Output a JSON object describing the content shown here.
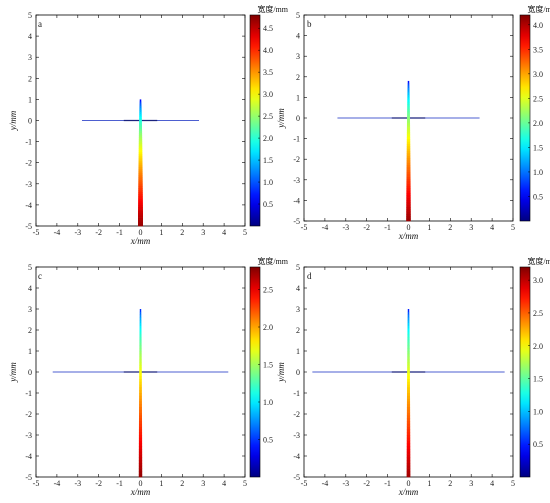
{
  "chart_data": [
    {
      "type": "heatmap",
      "panel": "a",
      "xlabel": "x/mm",
      "ylabel": "y/mm",
      "xlim": [
        -5,
        5
      ],
      "ylim": [
        -5,
        5
      ],
      "xticks": [
        -5,
        -4,
        -3,
        -2,
        -1,
        0,
        1,
        2,
        3,
        4,
        5
      ],
      "yticks": [
        -5,
        -4,
        -3,
        -2,
        -1,
        0,
        1,
        2,
        3,
        4,
        5
      ],
      "colorbar": {
        "title": "宽度/mm",
        "min": 0,
        "max": 4.8,
        "ticks": [
          "0.5",
          "1.0",
          "1.5",
          "2.0",
          "2.5",
          "3.0",
          "3.5",
          "4.0",
          "4.5"
        ]
      },
      "crack": {
        "horizontal": [
          -2.8,
          2.8
        ],
        "horizontal_y": 0,
        "vertical_top": 1.0,
        "vertical_bottom": -5.0,
        "width_top": 0.3,
        "width_bottom": 4.7
      }
    },
    {
      "type": "heatmap",
      "panel": "b",
      "xlabel": "x/mm",
      "ylabel": "y/mm",
      "xlim": [
        -5,
        5
      ],
      "ylim": [
        -5,
        5
      ],
      "xticks": [
        -5,
        -4,
        -3,
        -2,
        -1,
        0,
        1,
        2,
        3,
        4,
        5
      ],
      "yticks": [
        -5,
        -4,
        -3,
        -2,
        -1,
        0,
        1,
        2,
        3,
        4,
        5
      ],
      "colorbar": {
        "title": "宽度/mm",
        "min": 0,
        "max": 4.2,
        "ticks": [
          "0.5",
          "1.0",
          "1.5",
          "2.0",
          "2.5",
          "3.0",
          "3.5",
          "4.0"
        ]
      },
      "crack": {
        "horizontal": [
          -3.4,
          3.4
        ],
        "horizontal_y": 0,
        "vertical_top": 1.8,
        "vertical_bottom": -5.0,
        "width_top": 0.3,
        "width_bottom": 4.1
      }
    },
    {
      "type": "heatmap",
      "panel": "c",
      "xlabel": "x/mm",
      "ylabel": "y/mm",
      "xlim": [
        -5,
        5
      ],
      "ylim": [
        -5,
        5
      ],
      "xticks": [
        -5,
        -4,
        -3,
        -2,
        -1,
        0,
        1,
        2,
        3,
        4,
        5
      ],
      "yticks": [
        -5,
        -4,
        -3,
        -2,
        -1,
        0,
        1,
        2,
        3,
        4,
        5
      ],
      "colorbar": {
        "title": "宽度/mm",
        "min": 0,
        "max": 2.8,
        "ticks": [
          "0.5",
          "1.0",
          "1.5",
          "2.0",
          "2.5"
        ]
      },
      "crack": {
        "horizontal": [
          -4.2,
          4.2
        ],
        "horizontal_y": 0,
        "vertical_top": 3.0,
        "vertical_bottom": -5.0,
        "width_top": 0.3,
        "width_bottom": 2.75
      }
    },
    {
      "type": "heatmap",
      "panel": "d",
      "xlabel": "x/mm",
      "ylabel": "y/mm",
      "xlim": [
        -5,
        5
      ],
      "ylim": [
        -5,
        5
      ],
      "xticks": [
        -5,
        -4,
        -3,
        -2,
        -1,
        0,
        1,
        2,
        3,
        4,
        5
      ],
      "yticks": [
        -5,
        -4,
        -3,
        -2,
        -1,
        0,
        1,
        2,
        3,
        4,
        5
      ],
      "colorbar": {
        "title": "宽度/mm",
        "min": 0,
        "max": 3.2,
        "ticks": [
          "0.5",
          "1.0",
          "1.5",
          "2.0",
          "2.5",
          "3.0"
        ]
      },
      "crack": {
        "horizontal": [
          -4.6,
          4.6
        ],
        "horizontal_y": 0,
        "vertical_top": 3.0,
        "vertical_bottom": -5.0,
        "width_top": 0.3,
        "width_bottom": 3.1
      }
    }
  ]
}
